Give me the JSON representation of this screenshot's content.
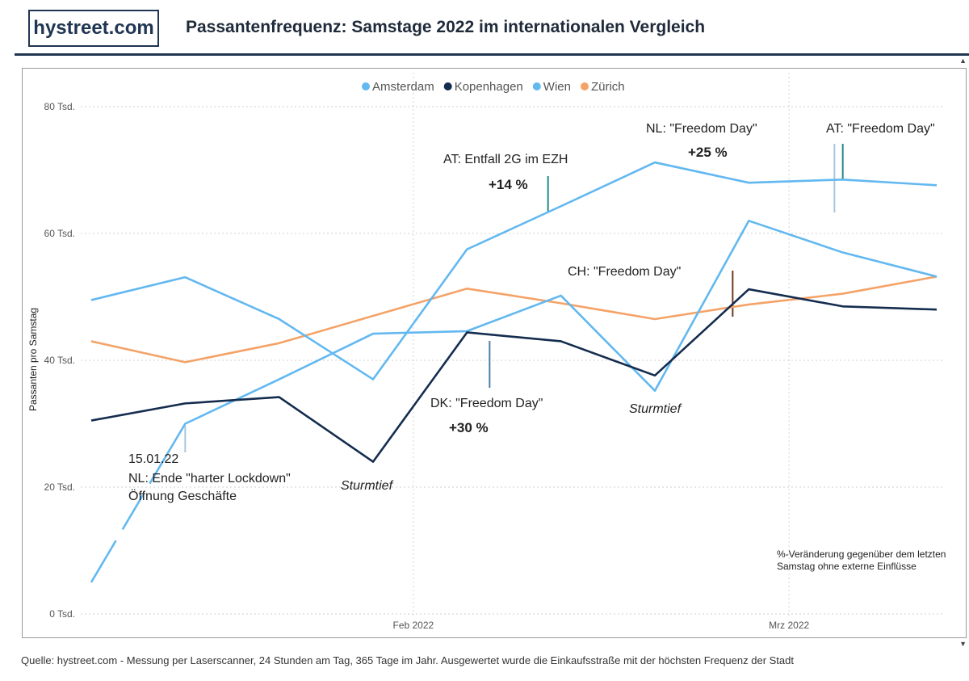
{
  "header": {
    "logo": "hystreet.com",
    "title": "Passantenfrequenz: Samstage 2022 im internationalen Vergleich"
  },
  "footer": {
    "source": "Quelle: hystreet.com - Messung per Laserscanner, 24 Stunden am Tag, 365 Tage im Jahr. Ausgewertet wurde die Einkaufsstraße mit der höchsten Frequenz der Stadt"
  },
  "chart_data": {
    "type": "line",
    "ylabel": "Passanten pro Samstag",
    "ylim": [
      0,
      80000
    ],
    "y_ticks": [
      0,
      20000,
      40000,
      60000,
      80000
    ],
    "y_tick_labels": [
      "0 Tsd.",
      "20 Tsd.",
      "40 Tsd.",
      "60 Tsd.",
      "80 Tsd."
    ],
    "x": [
      "2022-01-08",
      "2022-01-15",
      "2022-01-22",
      "2022-01-29",
      "2022-02-05",
      "2022-02-12",
      "2022-02-19",
      "2022-02-26",
      "2022-03-05",
      "2022-03-12"
    ],
    "x_ticks": [
      {
        "date": "2022-02-01",
        "label": "Feb 2022"
      },
      {
        "date": "2022-03-01",
        "label": "Mrz 2022"
      }
    ],
    "grid": true,
    "legend_position": "top-center",
    "series": [
      {
        "name": "Amsterdam",
        "color": "#62b8f0",
        "values": [
          5000,
          30000,
          37000,
          44200,
          44600,
          50200,
          35200,
          62000,
          57000,
          53200
        ],
        "gaps": [
          [
            2,
            2
          ]
        ]
      },
      {
        "name": "Kopenhagen",
        "color": "#142c4e",
        "values": [
          30500,
          33200,
          34200,
          24000,
          44400,
          43000,
          37600,
          51200,
          48500,
          48000
        ]
      },
      {
        "name": "Wien",
        "color": "#62b8f0",
        "values": [
          49500,
          53100,
          46500,
          37000,
          57500,
          64300,
          71200,
          68000,
          68500,
          67600
        ]
      },
      {
        "name": "Zürich",
        "color": "#f4a368",
        "values": [
          43000,
          39700,
          42700,
          47000,
          51300,
          49000,
          46500,
          48800,
          50500,
          53200
        ]
      }
    ],
    "annotations": [
      {
        "lines": [
          "15.01.22",
          "NL: Ende \"harter Lockdown\"",
          "Öffnung Geschäfte"
        ],
        "style": "normal"
      },
      {
        "lines": [
          "Sturmtief"
        ],
        "style": "italic"
      },
      {
        "lines": [
          "DK: \"Freedom Day\""
        ],
        "style": "normal"
      },
      {
        "lines": [
          "+30 %"
        ],
        "style": "bold"
      },
      {
        "lines": [
          "AT: Entfall 2G im EZH"
        ],
        "style": "normal"
      },
      {
        "lines": [
          "+14 %"
        ],
        "style": "bold"
      },
      {
        "lines": [
          "CH: \"Freedom Day\""
        ],
        "style": "normal"
      },
      {
        "lines": [
          "Sturmtief"
        ],
        "style": "italic"
      },
      {
        "lines": [
          "NL: \"Freedom Day\""
        ],
        "style": "normal"
      },
      {
        "lines": [
          "+25 %"
        ],
        "style": "bold"
      },
      {
        "lines": [
          "AT: \"Freedom Day\""
        ],
        "style": "normal"
      },
      {
        "lines": [
          "%-Veränderung gegenüber dem letzten",
          "Samstag ohne externe Einflüsse"
        ],
        "style": "small"
      }
    ],
    "marker_colors": {
      "dk": "#4a7fa8",
      "at": "#1f8a8a",
      "ch": "#6b3a1f",
      "nl": "#a8c8e0"
    }
  }
}
